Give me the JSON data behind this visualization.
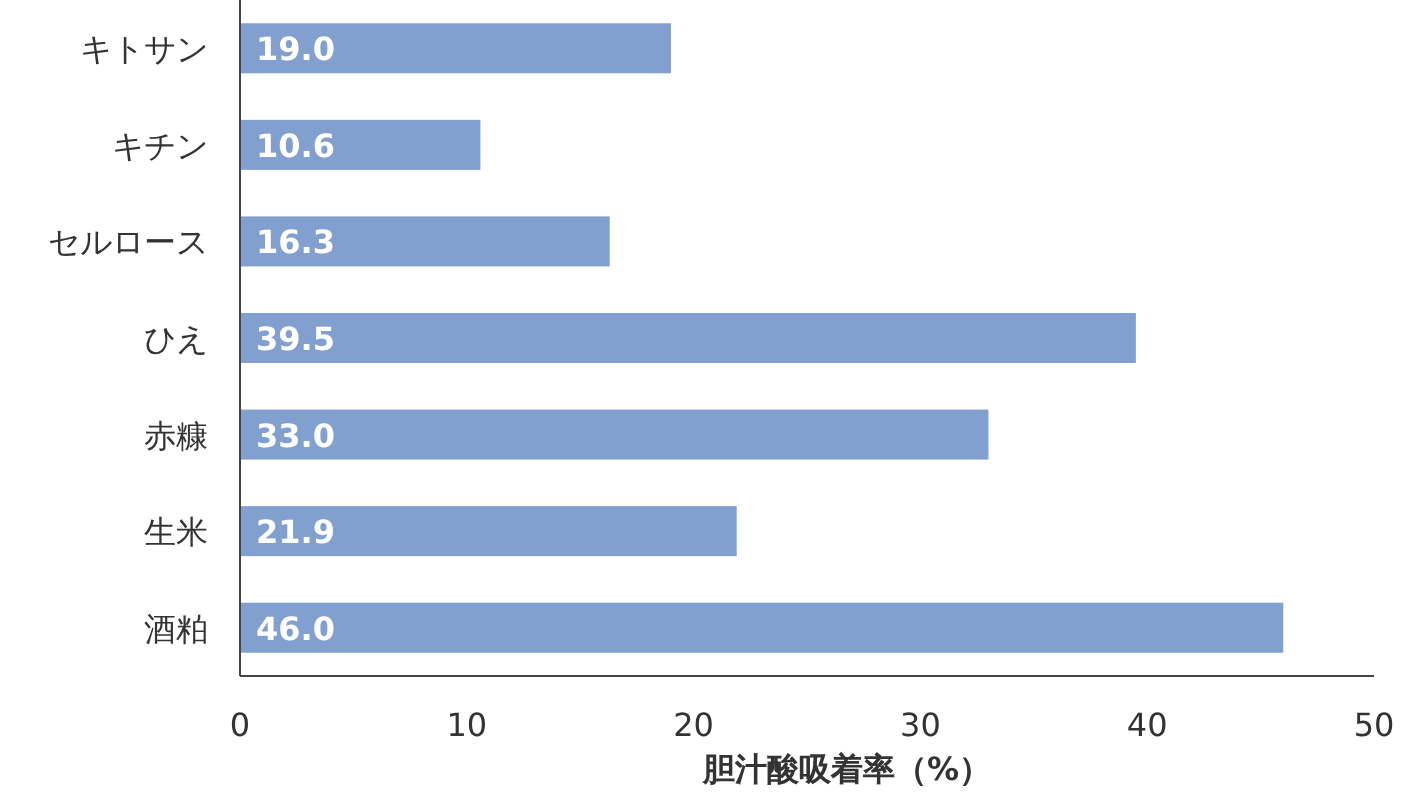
{
  "chart_data": {
    "type": "bar",
    "orientation": "horizontal",
    "xlabel": "胆汁酸吸着率（%）",
    "categories": [
      "キトサン",
      "キチン",
      "セルロース",
      "ひえ",
      "赤糠",
      "生米",
      "酒粕"
    ],
    "values": [
      19.0,
      10.6,
      16.3,
      39.5,
      33.0,
      21.9,
      46.0
    ],
    "value_labels": [
      "19.0",
      "10.6",
      "16.3",
      "39.5",
      "33.0",
      "21.9",
      "46.0"
    ],
    "color": "#819fcf",
    "xlim": [
      0,
      50
    ],
    "xticks": [
      0,
      10,
      20,
      30,
      40,
      50
    ],
    "grid": false
  }
}
